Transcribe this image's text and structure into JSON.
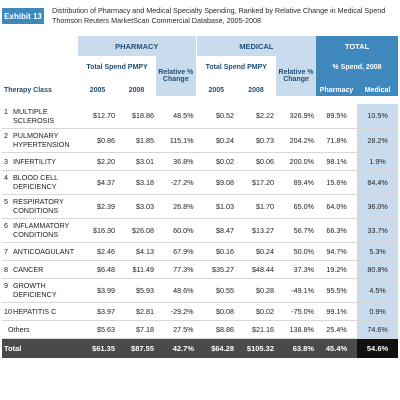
{
  "exhibit_label": "Exhibit 13",
  "title_line1": "Distribution of Pharmacy and Medical Specialty Spending, Ranked by Relative Change in Medical Spend",
  "title_line2": "Thomson Reuters MarketScan Commercial Database, 2005-2008",
  "headers": {
    "pharmacy": "PHARMACY",
    "medical": "MEDICAL",
    "total": "TOTAL",
    "total_spend": "Total Spend PMPY",
    "relative_change": "Relative % Change",
    "pct_spend": "% Spend, 2008",
    "therapy_class": "Therapy Class",
    "y2005": "2005",
    "y2008": "2008",
    "col_pharmacy": "Pharmacy",
    "col_medical": "Medical"
  },
  "rows": [
    {
      "num": "1",
      "name": "MULTIPLE SCLEROSIS",
      "ph05": "$12.70",
      "ph08": "$18.86",
      "phchg": "48.5%",
      "md05": "$0.52",
      "md08": "$2.22",
      "mdchg": "326.9%",
      "pct_ph": "89.5%",
      "pct_md": "10.5%"
    },
    {
      "num": "2",
      "name": "PULMONARY HYPERTENSION",
      "ph05": "$0.86",
      "ph08": "$1.85",
      "phchg": "115.1%",
      "md05": "$0.24",
      "md08": "$0.73",
      "mdchg": "204.2%",
      "pct_ph": "71.8%",
      "pct_md": "28.2%"
    },
    {
      "num": "3",
      "name": "INFERTILITY",
      "ph05": "$2.20",
      "ph08": "$3.01",
      "phchg": "36.8%",
      "md05": "$0.02",
      "md08": "$0.06",
      "mdchg": "200.0%",
      "pct_ph": "98.1%",
      "pct_md": "1.9%"
    },
    {
      "num": "4",
      "name": "BLOOD CELL DEFICIENCY",
      "ph05": "$4.37",
      "ph08": "$3.18",
      "phchg": "-27.2%",
      "md05": "$9.08",
      "md08": "$17.20",
      "mdchg": "89.4%",
      "pct_ph": "15.6%",
      "pct_md": "84.4%"
    },
    {
      "num": "5",
      "name": "RESPIRATORY CONDITIONS",
      "ph05": "$2.39",
      "ph08": "$3.03",
      "phchg": "26.8%",
      "md05": "$1.03",
      "md08": "$1.70",
      "mdchg": "65.0%",
      "pct_ph": "64.0%",
      "pct_md": "36.0%"
    },
    {
      "num": "6",
      "name": "INFLAMMATORY CONDITIONS",
      "ph05": "$16.30",
      "ph08": "$26.08",
      "phchg": "60.0%",
      "md05": "$8.47",
      "md08": "$13.27",
      "mdchg": "56.7%",
      "pct_ph": "66.3%",
      "pct_md": "33.7%"
    },
    {
      "num": "7",
      "name": "ANTICOAGULANT",
      "ph05": "$2.46",
      "ph08": "$4.13",
      "phchg": "67.9%",
      "md05": "$0.16",
      "md08": "$0.24",
      "mdchg": "50.0%",
      "pct_ph": "94.7%",
      "pct_md": "5.3%"
    },
    {
      "num": "8",
      "name": "CANCER",
      "ph05": "$6.48",
      "ph08": "$11.49",
      "phchg": "77.3%",
      "md05": "$35.27",
      "md08": "$48.44",
      "mdchg": "37.3%",
      "pct_ph": "19.2%",
      "pct_md": "80.8%"
    },
    {
      "num": "9",
      "name": "GROWTH DEFICIENCY",
      "ph05": "$3.99",
      "ph08": "$5.93",
      "phchg": "48.6%",
      "md05": "$0.55",
      "md08": "$0.28",
      "mdchg": "-49.1%",
      "pct_ph": "95.5%",
      "pct_md": "4.5%"
    },
    {
      "num": "10",
      "name": "HEPATITIS C",
      "ph05": "$3.97",
      "ph08": "$2.81",
      "phchg": "-29.2%",
      "md05": "$0.08",
      "md08": "$0.02",
      "mdchg": "-75.0%",
      "pct_ph": "99.1%",
      "pct_md": "0.9%"
    },
    {
      "num": "",
      "name": "Others",
      "ph05": "$5.63",
      "ph08": "$7.18",
      "phchg": "27.5%",
      "md05": "$8.86",
      "md08": "$21.16",
      "mdchg": "138.8%",
      "pct_ph": "25.4%",
      "pct_md": "74.6%"
    }
  ],
  "total": {
    "name": "Total",
    "ph05": "$61.35",
    "ph08": "$87.55",
    "phchg": "42.7%",
    "md05": "$64.28",
    "md08": "$105.32",
    "mdchg": "63.8%",
    "pct_ph": "45.4%",
    "pct_md": "54.6%"
  }
}
